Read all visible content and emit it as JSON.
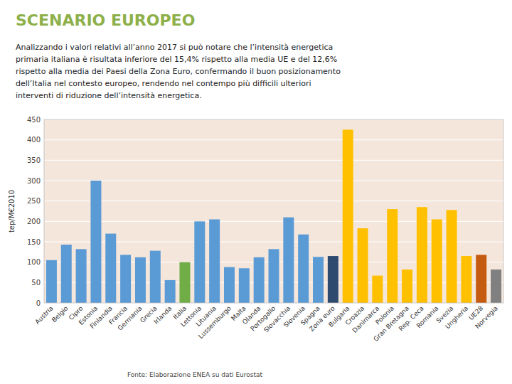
{
  "chart_data": {
    "type": "bar",
    "title": "SCENARIO EUROPEO",
    "text": [
      "Analizzando i valori relativi all’anno 2017 si può notare che l’intensità energetica",
      "primaria italiana è risultata inferiore del 15,4% rispetto alla media UE e del 12,6%",
      "rispetto alla media dei Paesi della Zona Euro, confermando il buon posizionamento",
      "dell’Italia nel contesto europeo, rendendo nel contempo più difficili ulteriori",
      "interventi di riduzione dell’intensità energetica."
    ],
    "ylabel": "tep/M€2010",
    "footnote": "Fonte: Elaborazione ENEA su dati Eurostat",
    "categories": [
      "Austria",
      "Belgio",
      "Cipro",
      "Estonia",
      "Finlandia",
      "Francia",
      "Germania",
      "Grecia",
      "Irlanda",
      "Italia",
      "Lettonia",
      "Lituania",
      "Lussemburgo",
      "Malta",
      "Olanda",
      "Portogallo",
      "Slovacchia",
      "Slovenia",
      "Spagna",
      "Zona euro",
      "Bulgaria",
      "Croazia",
      "Danimarca",
      "Polonia",
      "Gran Bretagna",
      "Rep. Ceca",
      "Romania",
      "Svezia",
      "Ungheria",
      "UE28",
      "Norvegia"
    ],
    "values": [
      105,
      143,
      132,
      300,
      170,
      118,
      112,
      128,
      56,
      100,
      200,
      205,
      88,
      85,
      112,
      132,
      210,
      168,
      113,
      115,
      425,
      183,
      67,
      230,
      82,
      235,
      205,
      228,
      115,
      118,
      82
    ],
    "colors": [
      "#5b9bd5",
      "#5b9bd5",
      "#5b9bd5",
      "#5b9bd5",
      "#5b9bd5",
      "#5b9bd5",
      "#5b9bd5",
      "#5b9bd5",
      "#5b9bd5",
      "#70ad47",
      "#5b9bd5",
      "#5b9bd5",
      "#5b9bd5",
      "#5b9bd5",
      "#5b9bd5",
      "#5b9bd5",
      "#5b9bd5",
      "#5b9bd5",
      "#5b9bd5",
      "#2e4a6e",
      "#ffc000",
      "#ffc000",
      "#ffc000",
      "#ffc000",
      "#ffc000",
      "#ffc000",
      "#ffc000",
      "#ffc000",
      "#ffc000",
      "#c55a11",
      "#808080"
    ],
    "ylim": [
      0,
      450
    ],
    "yticks": [
      0,
      50,
      100,
      150,
      200,
      250,
      300,
      350,
      400,
      450
    ],
    "grid": true
  }
}
